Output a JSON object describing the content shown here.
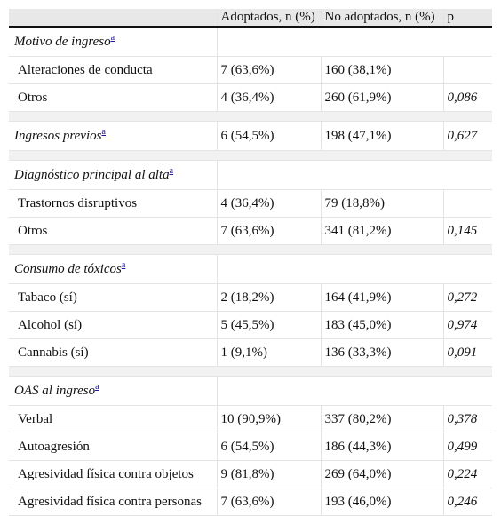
{
  "header": {
    "col_label": "",
    "col_adopted": "Adoptados, n (%)",
    "col_not_adopted": "No adoptados, n (%)",
    "col_p": "p"
  },
  "footnote_mark": "a",
  "sections": [
    {
      "title": "Motivo de ingreso",
      "rows": [
        {
          "label": "Alteraciones de conducta",
          "adopted": "7 (63,6%)",
          "not_adopted": "160 (38,1%)",
          "p": ""
        },
        {
          "label": "Otros",
          "adopted": "4 (36,4%)",
          "not_adopted": "260 (61,9%)",
          "p": "0,086"
        }
      ]
    },
    {
      "title": "Ingresos previos",
      "inline": {
        "adopted": "6 (54,5%)",
        "not_adopted": "198 (47,1%)",
        "p": "0,627"
      }
    },
    {
      "title": "Diagnóstico principal al alta",
      "rows": [
        {
          "label": "Trastornos disruptivos",
          "adopted": "4 (36,4%)",
          "not_adopted": "79 (18,8%)",
          "p": ""
        },
        {
          "label": "Otros",
          "adopted": "7 (63,6%)",
          "not_adopted": "341 (81,2%)",
          "p": "0,145"
        }
      ]
    },
    {
      "title": "Consumo de tóxicos",
      "rows": [
        {
          "label": "Tabaco (sí)",
          "adopted": "2 (18,2%)",
          "not_adopted": "164 (41,9%)",
          "p": "0,272"
        },
        {
          "label": "Alcohol (sí)",
          "adopted": "5 (45,5%)",
          "not_adopted": "183 (45,0%)",
          "p": "0,974"
        },
        {
          "label": "Cannabis (sí)",
          "adopted": "1 (9,1%)",
          "not_adopted": "136 (33,3%)",
          "p": "0,091"
        }
      ]
    },
    {
      "title": "OAS al ingreso",
      "rows": [
        {
          "label": "Verbal",
          "adopted": "10 (90,9%)",
          "not_adopted": "337 (80,2%)",
          "p": "0,378"
        },
        {
          "label": "Autoagresión",
          "adopted": "6 (54,5%)",
          "not_adopted": "186 (44,3%)",
          "p": "0,499"
        },
        {
          "label": "Agresividad física contra objetos",
          "adopted": "9 (81,8%)",
          "not_adopted": "269 (64,0%)",
          "p": "0,224"
        },
        {
          "label": "Agresividad física contra personas",
          "adopted": "7 (63,6%)",
          "not_adopted": "193 (46,0%)",
          "p": "0,246"
        }
      ]
    }
  ]
}
